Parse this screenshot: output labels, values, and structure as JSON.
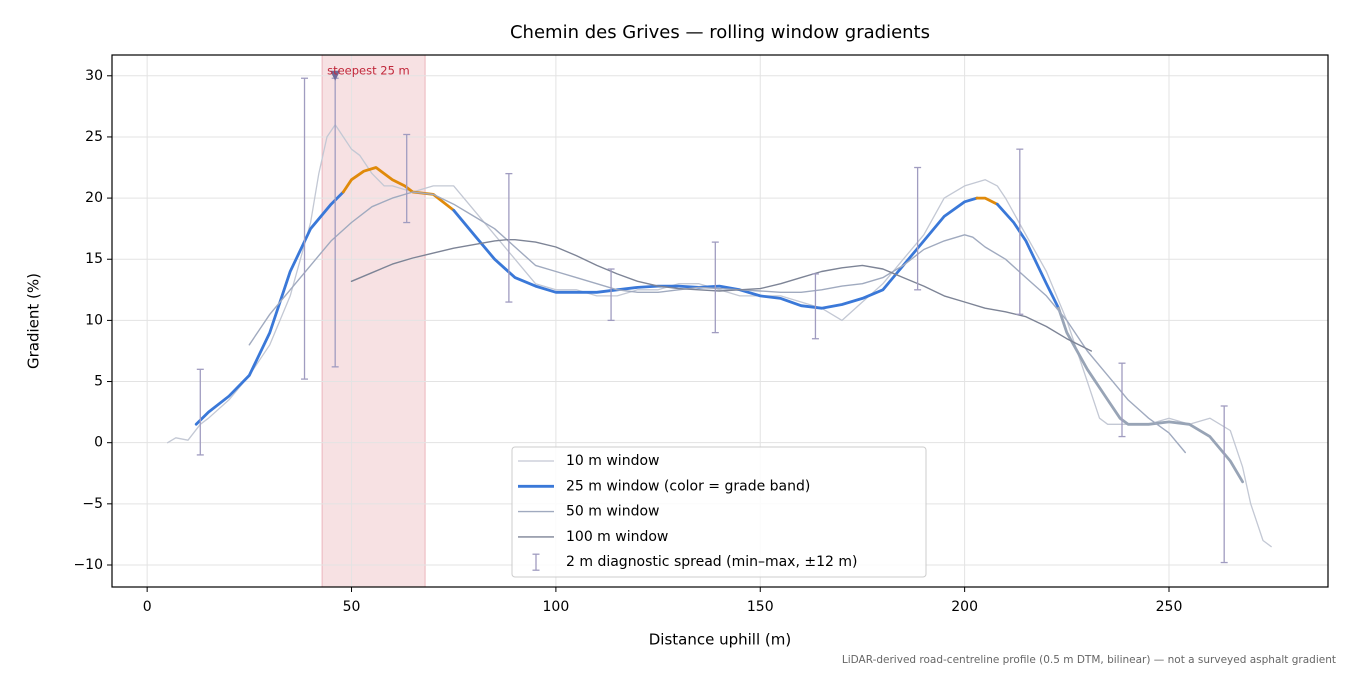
{
  "chart_data": {
    "type": "line",
    "title": "Chemin des Grives — rolling window gradients",
    "x_label": "Distance uphill (m)",
    "y_label": "Gradient (%)",
    "footnote": "LiDAR-derived road-centreline profile (0.5 m DTM, bilinear) — not a surveyed asphalt gradient",
    "xlim": [
      -8.6,
      288.9
    ],
    "ylim": [
      -11.8,
      31.7
    ],
    "xticks": [
      0,
      50,
      100,
      150,
      200,
      250
    ],
    "yticks": [
      {
        "value": -10,
        "label": "−10"
      },
      {
        "value": -5,
        "label": "−5"
      },
      0,
      5,
      10,
      15,
      20,
      25,
      30
    ],
    "grid": true,
    "legend": "lower center",
    "highlight": {
      "xlim": [
        42.8,
        68
      ],
      "color": "#e8a9b0",
      "label": "steepest 25 m",
      "label_color": "#c0273a",
      "marker": {
        "x": 46,
        "y": 30,
        "color": "#6f6a9a"
      }
    },
    "series": [
      {
        "name": "10 m window",
        "color": "#c3c8d4",
        "width": 1.3,
        "x": [
          5,
          7,
          10,
          13,
          15,
          20,
          25,
          30,
          35,
          40,
          42,
          44,
          46,
          48,
          50,
          52,
          55,
          58,
          60,
          65,
          70,
          75,
          80,
          85,
          90,
          95,
          100,
          105,
          110,
          115,
          120,
          125,
          130,
          135,
          140,
          145,
          150,
          155,
          160,
          165,
          170,
          175,
          180,
          185,
          190,
          195,
          200,
          205,
          208,
          210,
          215,
          220,
          225,
          230,
          233,
          235,
          240,
          245,
          250,
          255,
          260,
          265,
          268,
          270,
          273,
          275
        ],
        "values": [
          0,
          0.4,
          0.2,
          1.5,
          2,
          3.5,
          5.5,
          8,
          12,
          18,
          22,
          25,
          26,
          25,
          24,
          23.5,
          22,
          21,
          21,
          20.5,
          21,
          21,
          19,
          17,
          15,
          13,
          12.5,
          12.5,
          12,
          12,
          12.5,
          12.5,
          13,
          13,
          12.5,
          12,
          12,
          12,
          11.5,
          11,
          10,
          11.5,
          13,
          15,
          17,
          20,
          21,
          21.5,
          21,
          20,
          17,
          14,
          10,
          5,
          2,
          1.5,
          1.5,
          1.5,
          2,
          1.5,
          2,
          1,
          -2,
          -5,
          -8,
          -8.5
        ]
      },
      {
        "name": "25 m window (color = grade band)",
        "color": "#3a78d8",
        "width": 2.8,
        "x": [
          12,
          15,
          20,
          25,
          30,
          35,
          40,
          45,
          48,
          50,
          53,
          56,
          60,
          63,
          65,
          70,
          75,
          80,
          85,
          90,
          95,
          100,
          105,
          110,
          115,
          120,
          125,
          130,
          135,
          140,
          145,
          150,
          155,
          160,
          165,
          170,
          175,
          180,
          185,
          190,
          195,
          200,
          203,
          205,
          208,
          212,
          215,
          220,
          223,
          225,
          230,
          235,
          238,
          240,
          245,
          250,
          255,
          260,
          265,
          268
        ],
        "values": [
          1.5,
          2.5,
          3.8,
          5.5,
          9,
          14,
          17.5,
          19.5,
          20.5,
          21.5,
          22.2,
          22.5,
          21.5,
          21,
          20.5,
          20.3,
          19,
          17,
          15,
          13.5,
          12.8,
          12.3,
          12.3,
          12.3,
          12.5,
          12.7,
          12.8,
          12.8,
          12.7,
          12.8,
          12.5,
          12,
          11.8,
          11.2,
          11,
          11.3,
          11.8,
          12.5,
          14.5,
          16.5,
          18.5,
          19.7,
          20,
          20,
          19.5,
          18,
          16.5,
          13,
          11,
          9,
          6,
          3.5,
          2,
          1.5,
          1.5,
          1.7,
          1.5,
          0.5,
          -1.5,
          -3.2
        ],
        "colors": [
          "#3a78d8",
          "#3a78d8",
          "#3a78d8",
          "#3a78d8",
          "#3a78d8",
          "#3a78d8",
          "#3a78d8",
          "#3a78d8",
          "#e08a0a",
          "#e08a0a",
          "#e08a0a",
          "#e08a0a",
          "#e08a0a",
          "#e08a0a",
          "#e08a0a",
          "#e08a0a",
          "#3a78d8",
          "#3a78d8",
          "#3a78d8",
          "#3a78d8",
          "#3a78d8",
          "#3a78d8",
          "#3a78d8",
          "#3a78d8",
          "#3a78d8",
          "#3a78d8",
          "#3a78d8",
          "#3a78d8",
          "#3a78d8",
          "#3a78d8",
          "#3a78d8",
          "#3a78d8",
          "#3a78d8",
          "#3a78d8",
          "#3a78d8",
          "#3a78d8",
          "#3a78d8",
          "#3a78d8",
          "#3a78d8",
          "#3a78d8",
          "#3a78d8",
          "#3a78d8",
          "#e08a0a",
          "#e08a0a",
          "#3a78d8",
          "#3a78d8",
          "#3a78d8",
          "#3a78d8",
          "#98a4b6",
          "#98a4b6",
          "#98a4b6",
          "#98a4b6",
          "#98a4b6",
          "#98a4b6",
          "#98a4b6",
          "#98a4b6",
          "#98a4b6",
          "#98a4b6",
          "#98a4b6",
          "#98a4b6"
        ]
      },
      {
        "name": "50 m window",
        "color": "#a0aabf",
        "width": 1.4,
        "x": [
          25,
          28,
          30,
          35,
          40,
          45,
          50,
          55,
          60,
          65,
          70,
          75,
          80,
          85,
          90,
          95,
          100,
          105,
          110,
          115,
          120,
          125,
          130,
          135,
          140,
          145,
          150,
          155,
          160,
          165,
          170,
          175,
          180,
          185,
          190,
          195,
          200,
          202,
          205,
          210,
          215,
          220,
          225,
          230,
          235,
          240,
          245,
          250,
          254
        ],
        "values": [
          8,
          9.5,
          10.5,
          12.5,
          14.5,
          16.5,
          18,
          19.3,
          20,
          20.5,
          20.3,
          19.5,
          18.5,
          17.5,
          16,
          14.5,
          14,
          13.5,
          13,
          12.5,
          12.3,
          12.3,
          12.5,
          12.7,
          12.6,
          12.5,
          12.4,
          12.3,
          12.3,
          12.5,
          12.8,
          13,
          13.5,
          14.5,
          15.8,
          16.5,
          17,
          16.8,
          16,
          15,
          13.5,
          12,
          10,
          7.5,
          5.5,
          3.5,
          2,
          0.8,
          -0.8
        ]
      },
      {
        "name": "100 m window",
        "color": "#7d8496",
        "width": 1.4,
        "x": [
          50,
          55,
          60,
          65,
          70,
          75,
          80,
          85,
          88,
          90,
          95,
          100,
          105,
          110,
          115,
          120,
          125,
          130,
          135,
          140,
          145,
          150,
          155,
          160,
          165,
          170,
          175,
          180,
          185,
          190,
          195,
          200,
          205,
          210,
          215,
          220,
          225,
          231
        ],
        "values": [
          13.2,
          13.9,
          14.6,
          15.1,
          15.5,
          15.9,
          16.2,
          16.5,
          16.6,
          16.6,
          16.4,
          16,
          15.3,
          14.5,
          13.8,
          13.2,
          12.8,
          12.6,
          12.5,
          12.4,
          12.5,
          12.6,
          13,
          13.5,
          14,
          14.3,
          14.5,
          14.2,
          13.5,
          12.8,
          12,
          11.5,
          11,
          10.7,
          10.3,
          9.5,
          8.5,
          7.5
        ]
      },
      {
        "name": "2 m diagnostic spread (min–max, ±12 m)",
        "type": "errorbar",
        "color": "#a09cc0",
        "x": [
          13,
          38.5,
          46,
          63.5,
          88.5,
          113.5,
          139,
          163.5,
          188.5,
          213.5,
          238.5,
          263.5
        ],
        "low": [
          -1,
          5.2,
          6.2,
          18,
          11.5,
          10,
          9,
          8.5,
          12.5,
          10.5,
          0.5,
          -9.8
        ],
        "high": [
          6,
          29.8,
          29.8,
          25.2,
          22,
          14.2,
          16.4,
          13.8,
          22.5,
          24,
          6.5,
          3
        ]
      }
    ]
  }
}
